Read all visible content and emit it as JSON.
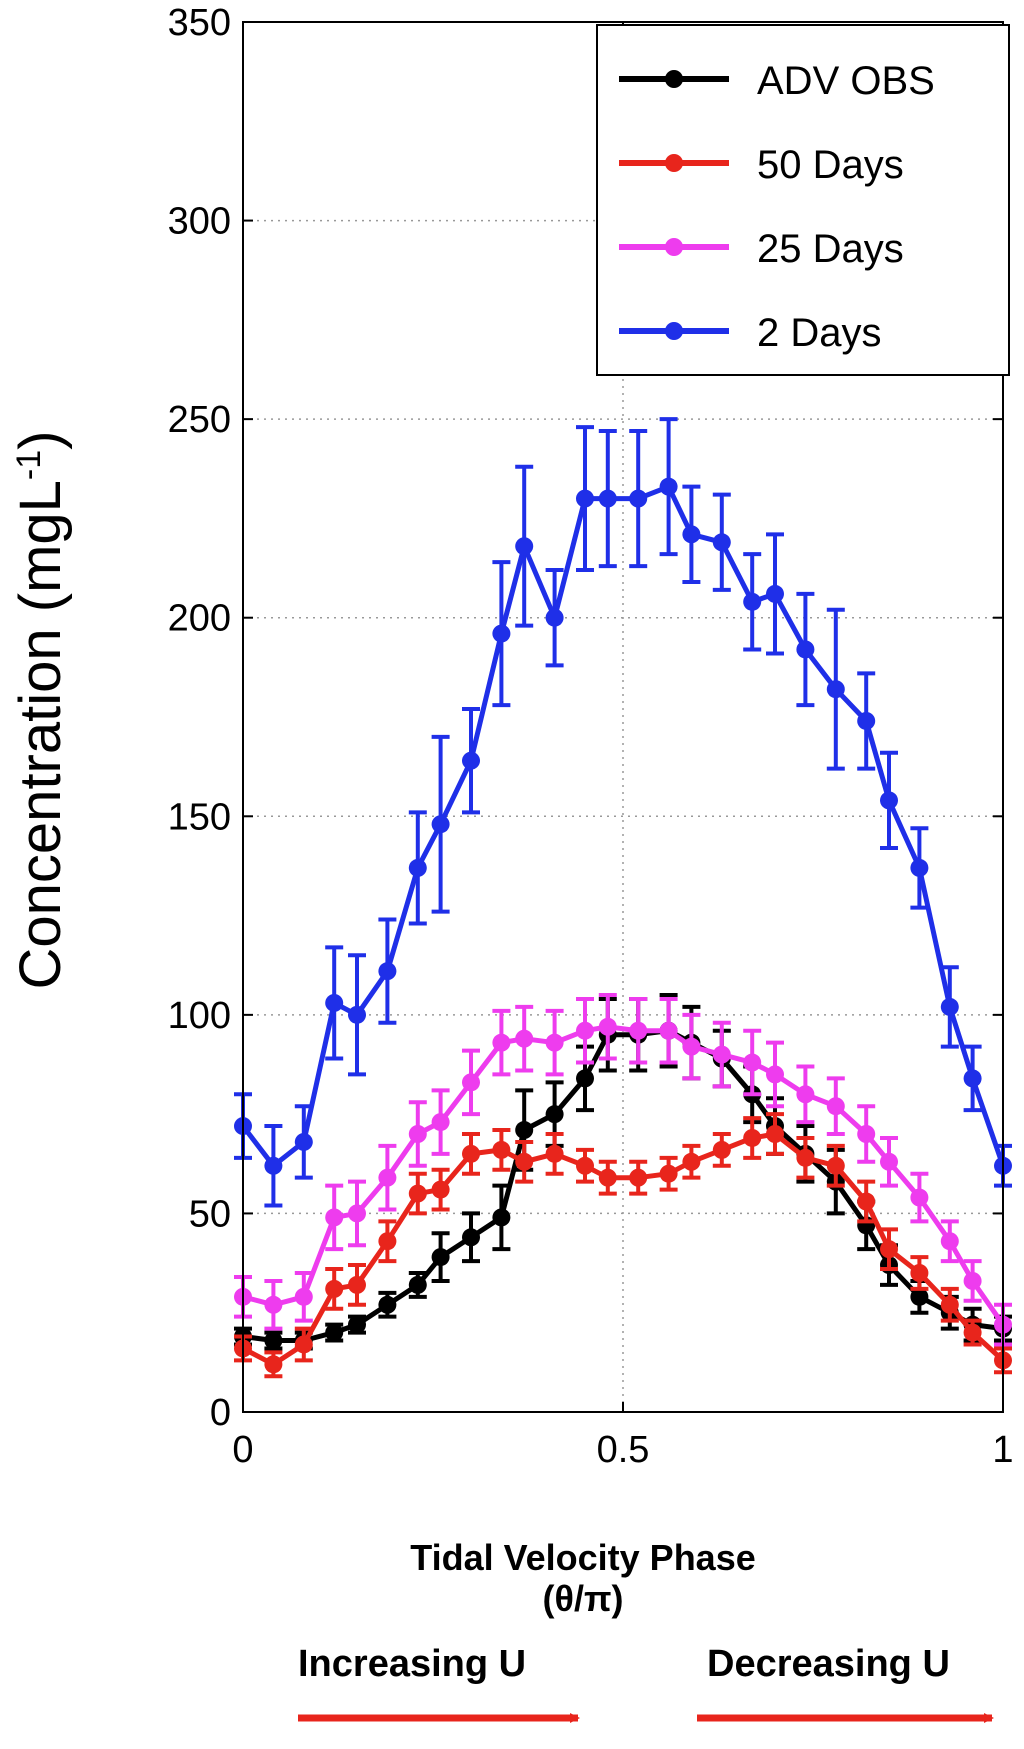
{
  "chart_data": {
    "type": "line",
    "title": "",
    "xlabel": "Tidal Velocity Phase",
    "xlabel_sub": "(θ/π)",
    "ylabel": "Concentration (mgL",
    "ylabel_sup": "-1",
    "ylabel_close": ")",
    "xlim": [
      0,
      1
    ],
    "ylim": [
      0,
      350
    ],
    "xticks": [
      "0",
      "0.5",
      "1"
    ],
    "xtick_values": [
      0,
      0.5,
      1
    ],
    "yticks": [
      "0",
      "50",
      "100",
      "150",
      "200",
      "250",
      "300",
      "350"
    ],
    "ytick_values": [
      0,
      50,
      100,
      150,
      200,
      250,
      300,
      350
    ],
    "grid": true,
    "legend_position": "top-right",
    "x": [
      0,
      0.04,
      0.08,
      0.12,
      0.15,
      0.19,
      0.23,
      0.26,
      0.3,
      0.34,
      0.37,
      0.41,
      0.45,
      0.48,
      0.52,
      0.56,
      0.59,
      0.63,
      0.67,
      0.7,
      0.74,
      0.78,
      0.82,
      0.85,
      0.89,
      0.93,
      0.96,
      1.0
    ],
    "series": [
      {
        "name": "ADV OBS",
        "color": "#000000",
        "values": [
          19,
          18,
          18,
          20,
          22,
          27,
          32,
          39,
          44,
          49,
          71,
          75,
          84,
          95,
          95,
          96,
          93,
          89,
          80,
          72,
          65,
          58,
          47,
          37,
          29,
          25,
          22,
          21
        ],
        "errors": [
          2,
          2,
          2,
          2,
          2,
          3,
          3,
          6,
          6,
          8,
          10,
          8,
          8,
          9,
          9,
          9,
          9,
          7,
          7,
          7,
          7,
          8,
          6,
          5,
          4,
          4,
          4,
          3
        ]
      },
      {
        "name": "50 Days",
        "color": "#e8251c",
        "values": [
          16,
          12,
          17,
          31,
          32,
          43,
          55,
          56,
          65,
          66,
          63,
          65,
          62,
          59,
          59,
          60,
          63,
          66,
          69,
          70,
          64,
          62,
          53,
          41,
          35,
          27,
          20,
          13
        ],
        "errors": [
          3,
          3,
          4,
          5,
          5,
          5,
          5,
          5,
          5,
          5,
          5,
          5,
          4,
          4,
          4,
          4,
          4,
          4,
          5,
          5,
          5,
          5,
          5,
          5,
          4,
          4,
          3,
          3
        ]
      },
      {
        "name": "25 Days",
        "color": "#ee3cee",
        "values": [
          29,
          27,
          29,
          49,
          50,
          59,
          70,
          73,
          83,
          93,
          94,
          93,
          96,
          97,
          96,
          96,
          92,
          90,
          88,
          85,
          80,
          77,
          70,
          63,
          54,
          43,
          33,
          22
        ],
        "errors": [
          5,
          6,
          6,
          8,
          8,
          8,
          8,
          8,
          8,
          8,
          8,
          8,
          8,
          8,
          8,
          8,
          8,
          8,
          8,
          8,
          7,
          7,
          7,
          6,
          6,
          5,
          5,
          5
        ]
      },
      {
        "name": "2 Days",
        "color": "#1f2fe8",
        "values": [
          72,
          62,
          68,
          103,
          100,
          111,
          137,
          148,
          164,
          196,
          218,
          200,
          230,
          230,
          230,
          233,
          221,
          219,
          204,
          206,
          192,
          182,
          174,
          154,
          137,
          102,
          84,
          62
        ],
        "errors": [
          8,
          10,
          9,
          14,
          15,
          13,
          14,
          22,
          13,
          18,
          20,
          12,
          18,
          17,
          17,
          17,
          12,
          12,
          12,
          15,
          14,
          20,
          12,
          12,
          10,
          10,
          8,
          5
        ]
      }
    ],
    "annotations": [
      {
        "text": "Increasing  U",
        "color": "#e8251c"
      },
      {
        "text": "Decreasing U",
        "color": "#e8251c"
      }
    ]
  }
}
